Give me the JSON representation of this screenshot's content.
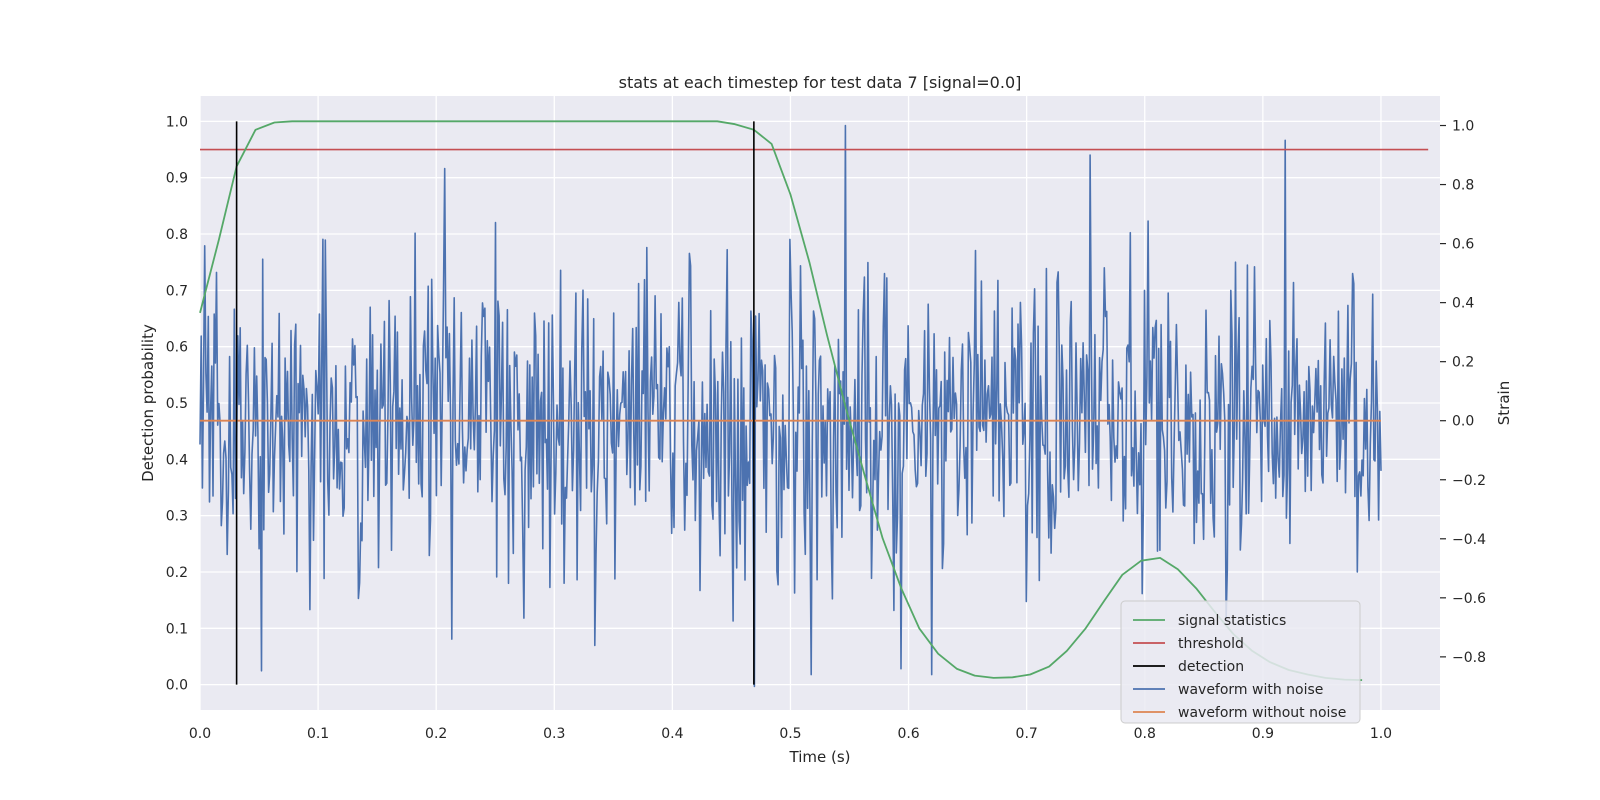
{
  "chart_data": {
    "type": "line",
    "title": "stats at each timestep for test data 7 [signal=0.0]",
    "xlabel": "Time (s)",
    "ylabel_left": "Detection probability",
    "ylabel_right": "Strain",
    "xlim": [
      0.0,
      1.05
    ],
    "ylim_left": [
      -0.045,
      1.045
    ],
    "ylim_right": [
      -0.98,
      1.1
    ],
    "x_ticks": [
      0.0,
      0.1,
      0.2,
      0.3,
      0.4,
      0.5,
      0.6,
      0.7,
      0.8,
      0.9,
      1.0
    ],
    "x_tick_labels": [
      "0.0",
      "0.1",
      "0.2",
      "0.3",
      "0.4",
      "0.5",
      "0.6",
      "0.7",
      "0.8",
      "0.9",
      "1.0"
    ],
    "y_left_ticks": [
      0.0,
      0.1,
      0.2,
      0.3,
      0.4,
      0.5,
      0.6,
      0.7,
      0.8,
      0.9,
      1.0
    ],
    "y_left_tick_labels": [
      "0.0",
      "0.1",
      "0.2",
      "0.3",
      "0.4",
      "0.5",
      "0.6",
      "0.7",
      "0.8",
      "0.9",
      "1.0"
    ],
    "y_right_ticks": [
      -0.8,
      -0.6,
      -0.4,
      -0.2,
      0.0,
      0.2,
      0.4,
      0.6,
      0.8,
      1.0
    ],
    "y_right_tick_labels": [
      "−0.8",
      "−0.6",
      "−0.4",
      "−0.2",
      "0.0",
      "0.2",
      "0.4",
      "0.6",
      "0.8",
      "1.0"
    ],
    "grid": true,
    "legend_position": "lower-right",
    "series": [
      {
        "name": "signal statistics",
        "axis": "left",
        "color": "#55a868",
        "x": [
          0.0,
          0.016,
          0.031,
          0.047,
          0.063,
          0.078,
          0.094,
          0.2,
          0.3,
          0.4,
          0.422,
          0.438,
          0.453,
          0.469,
          0.484,
          0.5,
          0.516,
          0.531,
          0.547,
          0.563,
          0.578,
          0.594,
          0.609,
          0.625,
          0.641,
          0.656,
          0.672,
          0.688,
          0.703,
          0.719,
          0.734,
          0.75,
          0.766,
          0.781,
          0.797,
          0.813,
          0.828,
          0.844,
          0.859,
          0.875,
          0.891,
          0.906,
          0.922,
          0.938,
          0.953,
          0.969,
          0.984
        ],
        "values": [
          0.66,
          0.79,
          0.92,
          0.985,
          0.998,
          1.0,
          1.0,
          1.0,
          1.0,
          1.0,
          1.0,
          1.0,
          0.995,
          0.985,
          0.96,
          0.87,
          0.75,
          0.62,
          0.49,
          0.37,
          0.26,
          0.17,
          0.1,
          0.055,
          0.028,
          0.016,
          0.012,
          0.013,
          0.018,
          0.032,
          0.06,
          0.1,
          0.15,
          0.195,
          0.22,
          0.225,
          0.205,
          0.17,
          0.13,
          0.09,
          0.06,
          0.04,
          0.026,
          0.018,
          0.012,
          0.009,
          0.008
        ]
      },
      {
        "name": "threshold",
        "axis": "left",
        "color": "#c44e52",
        "x": [
          0.0,
          1.04
        ],
        "values": [
          0.95,
          0.95
        ]
      },
      {
        "name": "detection",
        "axis": "left",
        "color": "#000000",
        "segments": [
          {
            "x": 0.031,
            "from": 0.0,
            "to": 1.0
          },
          {
            "x": 0.469,
            "from": 0.0,
            "to": 1.0
          }
        ]
      },
      {
        "name": "waveform with noise",
        "axis": "right",
        "color": "#4c72b0",
        "sample_count": 1000,
        "x_start": 0.0,
        "x_end": 1.0,
        "notable_extremes": [
          {
            "x": 0.547,
            "value": 1.0
          },
          {
            "x": 0.919,
            "value": 0.95
          },
          {
            "x": 0.469,
            "value": -0.9
          },
          {
            "x": 0.594,
            "value": -0.84
          }
        ]
      },
      {
        "name": "waveform without noise",
        "axis": "right",
        "color": "#dd8452",
        "x": [
          0.0,
          1.0
        ],
        "values": [
          0.0,
          0.0
        ]
      }
    ]
  }
}
